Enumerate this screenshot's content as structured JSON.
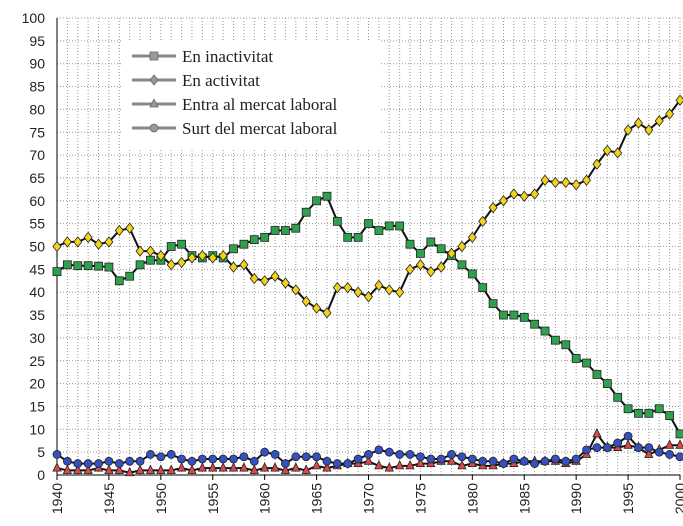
{
  "chart_data": {
    "type": "line",
    "x": [
      1940,
      1941,
      1942,
      1943,
      1944,
      1945,
      1946,
      1947,
      1948,
      1949,
      1950,
      1951,
      1952,
      1953,
      1954,
      1955,
      1956,
      1957,
      1958,
      1959,
      1960,
      1961,
      1962,
      1963,
      1964,
      1965,
      1966,
      1967,
      1968,
      1969,
      1970,
      1971,
      1972,
      1973,
      1974,
      1975,
      1976,
      1977,
      1978,
      1979,
      1980,
      1981,
      1982,
      1983,
      1984,
      1985,
      1986,
      1987,
      1988,
      1989,
      1990,
      1991,
      1992,
      1993,
      1994,
      1995,
      1996,
      1997,
      1998,
      1999,
      2000
    ],
    "series": [
      {
        "name": "En inactivitat",
        "color": "#2fa04e",
        "marker": "square",
        "values": [
          44.5,
          46,
          45.8,
          45.8,
          45.7,
          45.5,
          42.5,
          43.5,
          46,
          47,
          47,
          50,
          50.5,
          48,
          47.5,
          48,
          47.5,
          49.5,
          50.5,
          51.5,
          52,
          53.5,
          53.5,
          54,
          57.5,
          60,
          61,
          55.5,
          52,
          52,
          55,
          53.5,
          54.5,
          54.5,
          50.5,
          48.5,
          51,
          49.5,
          48,
          46,
          44,
          41,
          37.5,
          35,
          35,
          34.5,
          33,
          31.5,
          29.5,
          28.5,
          25.5,
          24.5,
          22,
          20,
          17,
          14.5,
          13.5,
          13.5,
          14.5,
          13,
          9
        ]
      },
      {
        "name": "En activitat",
        "color": "#f2d21b",
        "marker": "diamond",
        "values": [
          50,
          51,
          51,
          52,
          50.5,
          51,
          53.5,
          54,
          49,
          49,
          48,
          46,
          46.5,
          47.5,
          48,
          47.5,
          48,
          45.5,
          46,
          43,
          42.5,
          43.5,
          42,
          40.5,
          38,
          36.5,
          35.5,
          41,
          41,
          40,
          39,
          41.5,
          40.5,
          40,
          45,
          46,
          44.5,
          45.5,
          48.5,
          50,
          52,
          55.5,
          58.5,
          60,
          61.5,
          61,
          61.5,
          64.5,
          64,
          64,
          63.5,
          64.5,
          68,
          71,
          70.5,
          75.5,
          77,
          75.5,
          77.5,
          79,
          82
        ]
      },
      {
        "name": "Entra al mercat laboral",
        "color": "#e04848",
        "marker": "triangle",
        "values": [
          1.5,
          1,
          1,
          1,
          1.5,
          1,
          1,
          0.5,
          1,
          1,
          1,
          1,
          1.5,
          1,
          1.5,
          1.5,
          1.5,
          1.5,
          1.5,
          1,
          1.5,
          1.5,
          1,
          1.5,
          1,
          2,
          1.5,
          2,
          2.5,
          2.5,
          3,
          2,
          1.5,
          2,
          2,
          2.5,
          2.5,
          3,
          3,
          2,
          2.5,
          2,
          2,
          2.5,
          2.5,
          3,
          3,
          3,
          3,
          2.5,
          3,
          4.5,
          9,
          6,
          6,
          6.5,
          6,
          4.5,
          5.5,
          6.5,
          6.5
        ]
      },
      {
        "name": "Surt del mercat laboral",
        "color": "#3550c0",
        "marker": "circle",
        "values": [
          4.5,
          3,
          2.5,
          2.5,
          2.5,
          3,
          2.5,
          3,
          3,
          4.5,
          4,
          4.5,
          3.5,
          3,
          3.5,
          3.5,
          3.5,
          3.5,
          4,
          3,
          5,
          4.5,
          2.5,
          4,
          4,
          4,
          3,
          2.5,
          2.5,
          3.5,
          4.5,
          5.5,
          5,
          4.5,
          4.5,
          4,
          3.5,
          3.5,
          4.5,
          4,
          3.5,
          3,
          3,
          2.5,
          3.5,
          3,
          2.5,
          3,
          3.5,
          3,
          3.5,
          5.5,
          6,
          6,
          7,
          8.5,
          6,
          6,
          5,
          4.5,
          4
        ]
      }
    ],
    "xlim": [
      1940,
      2000
    ],
    "xticks": [
      1940,
      1945,
      1950,
      1955,
      1960,
      1965,
      1970,
      1975,
      1980,
      1985,
      1990,
      1995,
      2000
    ],
    "ylim": [
      0,
      100
    ],
    "yticks": [
      0,
      5,
      10,
      15,
      20,
      25,
      30,
      35,
      40,
      45,
      50,
      55,
      60,
      65,
      70,
      75,
      80,
      85,
      90,
      95,
      100
    ],
    "grid": true,
    "legend": "upper left"
  }
}
